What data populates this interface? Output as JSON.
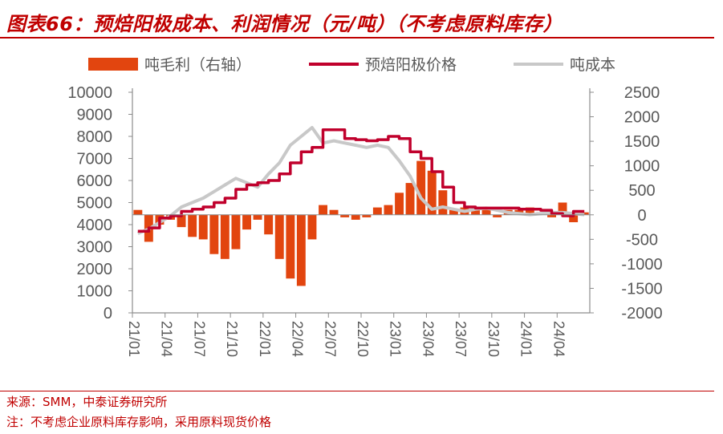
{
  "header": {
    "title": "图表66：预焙阳极成本、利润情况（元/吨）（不考虑原料库存）"
  },
  "footer": {
    "source": "来源：SMM，中泰证券研究所",
    "note": "注：不考虑企业原料库存影响，采用原料现货价格"
  },
  "colors": {
    "accent": "#c00000",
    "profit_bar": "#e2450f",
    "price_line": "#c0002c",
    "cost_line": "#c8c8c8",
    "axis": "#8c8c8c"
  },
  "chart_data": {
    "type": "bar+line",
    "legend": [
      "吨毛利（右轴）",
      "预焙阳极价格",
      "吨成本"
    ],
    "legend_position": "top",
    "x_tick_labels": [
      "21/01",
      "21/04",
      "21/07",
      "21/10",
      "22/01",
      "22/04",
      "22/07",
      "22/10",
      "23/01",
      "23/04",
      "23/07",
      "23/10",
      "24/01",
      "24/04"
    ],
    "x_range": [
      "2021-01",
      "2024-06"
    ],
    "y_left": {
      "ticks": [
        0,
        1000,
        2000,
        3000,
        4000,
        5000,
        6000,
        7000,
        8000,
        9000,
        10000
      ],
      "range": [
        0,
        10000
      ]
    },
    "y_right": {
      "ticks": [
        2500,
        2000,
        1500,
        1000,
        500,
        0,
        -500,
        -1000,
        -1500,
        -2000
      ],
      "range": [
        -2000,
        2500
      ]
    },
    "grid": false,
    "series": [
      {
        "name": "预焙阳极价格",
        "axis": "left",
        "type": "line",
        "months": [
          0,
          1,
          2,
          3,
          4,
          5,
          6,
          7,
          8,
          9,
          10,
          11,
          12,
          13,
          14,
          15,
          16,
          17,
          18,
          19,
          20,
          21,
          22,
          23,
          24,
          25,
          26,
          27,
          28,
          29,
          30,
          31,
          32,
          33,
          34,
          35,
          36,
          37,
          38,
          39,
          40,
          41
        ],
        "values": [
          3700,
          3850,
          4300,
          4400,
          4600,
          4700,
          4800,
          5000,
          5200,
          5600,
          5800,
          5900,
          6000,
          6300,
          6800,
          7300,
          7500,
          8300,
          8300,
          7900,
          7850,
          7800,
          7850,
          8000,
          7900,
          7300,
          7000,
          6400,
          5700,
          5000,
          4800,
          4750,
          4750,
          4750,
          4750,
          4700,
          4700,
          4650,
          4500,
          4400,
          4600,
          4600
        ]
      },
      {
        "name": "吨成本",
        "axis": "left",
        "type": "line",
        "months": [
          0,
          1,
          2,
          3,
          4,
          5,
          6,
          7,
          8,
          9,
          10,
          11,
          12,
          13,
          14,
          15,
          16,
          17,
          18,
          19,
          20,
          21,
          22,
          23,
          24,
          25,
          26,
          27,
          28,
          29,
          30,
          31,
          32,
          33,
          34,
          35,
          36,
          37,
          38,
          39,
          40,
          41
        ],
        "values": [
          3600,
          3800,
          4100,
          4400,
          4800,
          5000,
          5200,
          5500,
          5800,
          6100,
          5900,
          5700,
          6300,
          6800,
          7600,
          8000,
          8400,
          7700,
          7800,
          7700,
          7600,
          7500,
          7600,
          7500,
          6900,
          6200,
          5200,
          4700,
          4800,
          4700,
          4600,
          4700,
          4750,
          4650,
          4550,
          4500,
          4450,
          4500,
          4550,
          4550,
          4500,
          4450
        ]
      },
      {
        "name": "吨毛利（右轴）",
        "axis": "right",
        "type": "bar",
        "months": [
          0,
          1,
          2,
          3,
          4,
          5,
          6,
          7,
          8,
          9,
          10,
          11,
          12,
          13,
          14,
          15,
          16,
          17,
          18,
          19,
          20,
          21,
          22,
          23,
          24,
          25,
          26,
          27,
          28,
          29,
          30,
          31,
          32,
          33,
          34,
          35,
          36,
          37,
          38,
          39,
          40,
          41
        ],
        "values": [
          100,
          -550,
          -200,
          -100,
          -250,
          -450,
          -500,
          -800,
          -900,
          -700,
          -300,
          -100,
          -400,
          -900,
          -1300,
          -1450,
          -500,
          200,
          100,
          -50,
          -100,
          -50,
          150,
          200,
          450,
          650,
          1100,
          900,
          500,
          100,
          150,
          100,
          100,
          -50,
          100,
          100,
          150,
          50,
          -50,
          250,
          -150,
          50
        ]
      }
    ]
  }
}
